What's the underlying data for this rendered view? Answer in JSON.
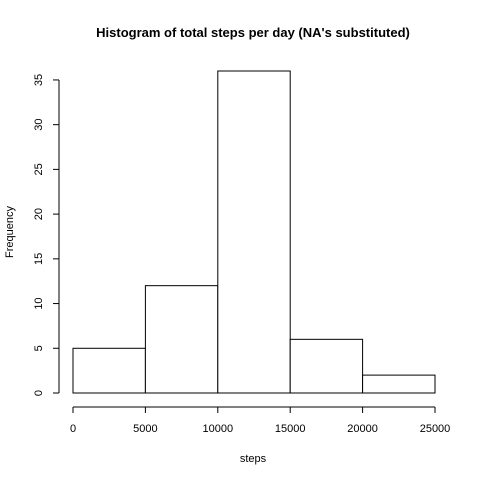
{
  "chart_data": {
    "type": "bar",
    "title": "Histogram of total steps per day (NA's substituted)",
    "xlabel": "steps",
    "ylabel": "Frequency",
    "bins": [
      {
        "from": 0,
        "to": 5000,
        "value": 5
      },
      {
        "from": 5000,
        "to": 10000,
        "value": 12
      },
      {
        "from": 10000,
        "to": 15000,
        "value": 36
      },
      {
        "from": 15000,
        "to": 20000,
        "value": 6
      },
      {
        "from": 20000,
        "to": 25000,
        "value": 2
      }
    ],
    "xlim": [
      0,
      25000
    ],
    "ylim": [
      0,
      36
    ],
    "x_ticks": [
      0,
      5000,
      10000,
      15000,
      20000,
      25000
    ],
    "y_ticks": [
      0,
      5,
      10,
      15,
      20,
      25,
      30,
      35
    ],
    "grid": false,
    "colors": {
      "bar_fill": "#ffffff",
      "bar_stroke": "#000000"
    }
  }
}
